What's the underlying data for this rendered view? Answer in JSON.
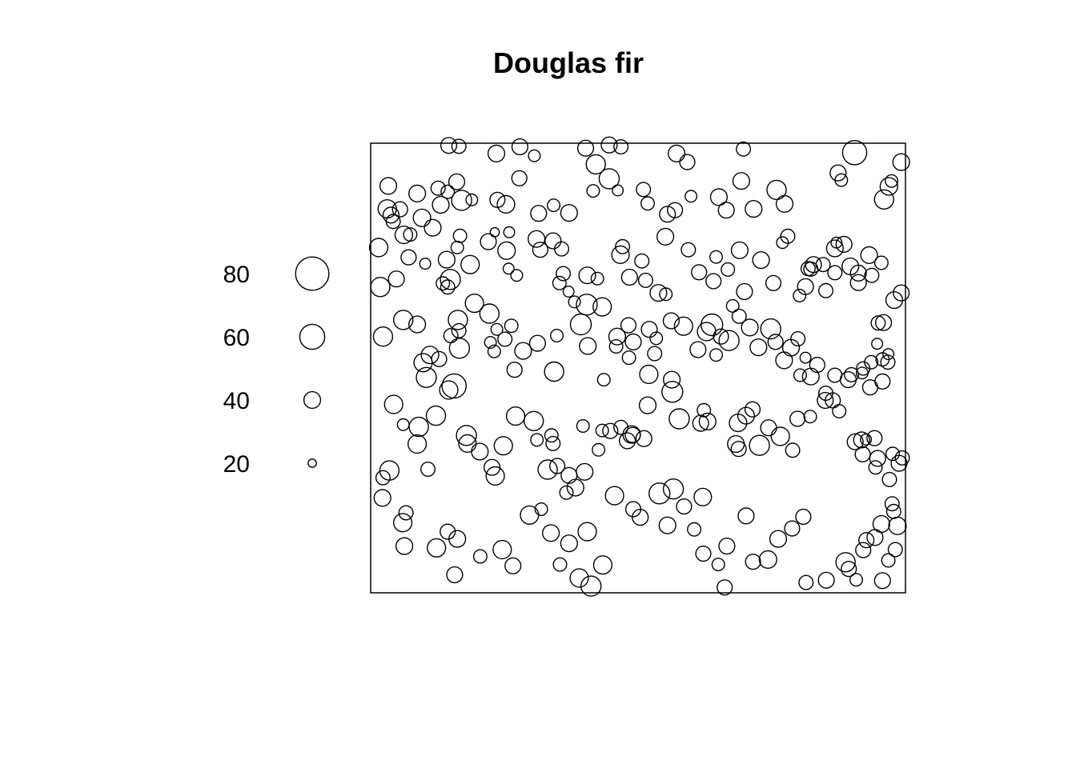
{
  "chart_data": {
    "type": "scatter",
    "title": "Douglas fir",
    "xlabel": "",
    "ylabel": "",
    "xlim": [
      0,
      100
    ],
    "ylim": [
      0,
      100
    ],
    "axes": "none",
    "grid": false,
    "box": true,
    "marker": "open-circle",
    "size_variable": "diameter",
    "legend": {
      "position": "left",
      "entries": [
        {
          "label": "80",
          "value": 80
        },
        {
          "label": "60",
          "value": 60
        },
        {
          "label": "40",
          "value": 40
        },
        {
          "label": "20",
          "value": 20
        }
      ]
    },
    "points": [
      [
        14.6,
        99.5,
        38
      ],
      [
        16.5,
        99.3,
        34
      ],
      [
        23.5,
        97.7,
        40
      ],
      [
        27.9,
        99.2,
        38
      ],
      [
        30.6,
        97.2,
        28
      ],
      [
        40.2,
        98.9,
        38
      ],
      [
        42.1,
        95.3,
        46
      ],
      [
        44.6,
        99.6,
        38
      ],
      [
        46.8,
        99.2,
        34
      ],
      [
        57.2,
        97.7,
        40
      ],
      [
        59.2,
        95.8,
        36
      ],
      [
        69.7,
        98.7,
        34
      ],
      [
        90.5,
        97.9,
        58
      ],
      [
        99.2,
        95.8,
        40
      ],
      [
        3.3,
        90.5,
        40
      ],
      [
        3.1,
        85.4,
        44
      ],
      [
        5.5,
        85.3,
        36
      ],
      [
        8.7,
        88.8,
        40
      ],
      [
        12.6,
        90.0,
        34
      ],
      [
        13.1,
        86.3,
        40
      ],
      [
        16.1,
        91.4,
        38
      ],
      [
        14.4,
        89.2,
        32
      ],
      [
        17.0,
        87.3,
        48
      ],
      [
        18.9,
        87.4,
        28
      ],
      [
        23.7,
        87.4,
        36
      ],
      [
        25.3,
        86.4,
        42
      ],
      [
        27.8,
        92.2,
        36
      ],
      [
        31.4,
        84.4,
        38
      ],
      [
        34.2,
        86.2,
        30
      ],
      [
        37.1,
        84.5,
        40
      ],
      [
        41.6,
        89.4,
        30
      ],
      [
        44.6,
        92.1,
        48
      ],
      [
        46.2,
        89.5,
        26
      ],
      [
        51.0,
        89.7,
        34
      ],
      [
        51.8,
        86.6,
        32
      ],
      [
        55.5,
        84.2,
        38
      ],
      [
        56.9,
        85.1,
        36
      ],
      [
        59.9,
        88.2,
        28
      ],
      [
        65.1,
        88.0,
        40
      ],
      [
        66.5,
        85.1,
        38
      ],
      [
        69.3,
        91.6,
        40
      ],
      [
        71.6,
        85.4,
        40
      ],
      [
        75.9,
        89.6,
        46
      ],
      [
        77.4,
        86.5,
        40
      ],
      [
        87.4,
        93.4,
        38
      ],
      [
        88.0,
        91.8,
        30
      ],
      [
        96.9,
        90.4,
        42
      ],
      [
        96.0,
        87.5,
        46
      ],
      [
        97.4,
        91.6,
        30
      ],
      [
        1.5,
        76.8,
        44
      ],
      [
        3.8,
        84.0,
        38
      ],
      [
        4.2,
        82.6,
        34
      ],
      [
        6.2,
        79.6,
        42
      ],
      [
        7.4,
        79.7,
        32
      ],
      [
        9.6,
        83.4,
        42
      ],
      [
        11.6,
        81.2,
        40
      ],
      [
        7.1,
        74.6,
        36
      ],
      [
        10.2,
        73.2,
        26
      ],
      [
        14.2,
        74.1,
        40
      ],
      [
        14.9,
        69.7,
        48
      ],
      [
        16.2,
        76.8,
        30
      ],
      [
        16.7,
        79.4,
        32
      ],
      [
        18.6,
        73.0,
        44
      ],
      [
        22.0,
        78.1,
        38
      ],
      [
        23.2,
        80.2,
        22
      ],
      [
        25.4,
        76.1,
        42
      ],
      [
        25.9,
        80.2,
        26
      ],
      [
        25.8,
        72.1,
        26
      ],
      [
        27.3,
        70.6,
        28
      ],
      [
        31.0,
        78.7,
        40
      ],
      [
        31.7,
        76.3,
        36
      ],
      [
        34.1,
        78.3,
        38
      ],
      [
        35.7,
        76.5,
        34
      ],
      [
        36.0,
        71.0,
        34
      ],
      [
        35.3,
        68.9,
        32
      ],
      [
        37.0,
        67.0,
        26
      ],
      [
        40.5,
        70.6,
        40
      ],
      [
        42.4,
        69.9,
        30
      ],
      [
        46.7,
        75.2,
        42
      ],
      [
        47.1,
        77.0,
        34
      ],
      [
        48.4,
        70.2,
        38
      ],
      [
        50.7,
        73.8,
        34
      ],
      [
        51.4,
        69.5,
        34
      ],
      [
        53.8,
        66.7,
        40
      ],
      [
        55.2,
        66.4,
        30
      ],
      [
        55.1,
        79.2,
        40
      ],
      [
        59.4,
        76.3,
        34
      ],
      [
        61.4,
        71.3,
        36
      ],
      [
        64.1,
        69.3,
        36
      ],
      [
        64.6,
        74.7,
        30
      ],
      [
        67.7,
        63.8,
        30
      ],
      [
        66.8,
        71.9,
        32
      ],
      [
        69.0,
        76.2,
        40
      ],
      [
        69.9,
        67.0,
        38
      ],
      [
        73.0,
        74.0,
        40
      ],
      [
        75.3,
        68.9,
        36
      ],
      [
        78.0,
        79.3,
        34
      ],
      [
        77.0,
        77.9,
        28
      ],
      [
        81.3,
        68.1,
        38
      ],
      [
        80.2,
        66.1,
        30
      ],
      [
        81.8,
        72.1,
        34
      ],
      [
        82.3,
        72.0,
        34
      ],
      [
        82.8,
        73.0,
        38
      ],
      [
        84.6,
        73.0,
        34
      ],
      [
        85.1,
        67.2,
        34
      ],
      [
        86.8,
        76.6,
        40
      ],
      [
        86.8,
        71.2,
        34
      ],
      [
        87.1,
        77.9,
        26
      ],
      [
        88.5,
        77.5,
        38
      ],
      [
        89.7,
        72.6,
        40
      ],
      [
        91.2,
        71.1,
        38
      ],
      [
        91.2,
        69.0,
        38
      ],
      [
        93.2,
        75.1,
        40
      ],
      [
        93.7,
        70.6,
        34
      ],
      [
        95.5,
        73.4,
        32
      ],
      [
        99.2,
        66.7,
        38
      ],
      [
        97.9,
        65.1,
        40
      ],
      [
        94.9,
        60.0,
        34
      ],
      [
        95.9,
        60.1,
        38
      ],
      [
        1.8,
        68.0,
        46
      ],
      [
        4.8,
        69.8,
        38
      ],
      [
        2.3,
        57.0,
        46
      ],
      [
        6.1,
        60.7,
        46
      ],
      [
        8.7,
        59.7,
        40
      ],
      [
        11.1,
        52.9,
        42
      ],
      [
        9.8,
        51.2,
        44
      ],
      [
        10.4,
        47.9,
        48
      ],
      [
        12.8,
        52.0,
        36
      ],
      [
        13.5,
        68.8,
        32
      ],
      [
        14.4,
        68.0,
        34
      ],
      [
        15.0,
        57.2,
        34
      ],
      [
        16.3,
        60.7,
        46
      ],
      [
        16.5,
        58.3,
        34
      ],
      [
        16.6,
        54.4,
        48
      ],
      [
        15.6,
        46.0,
        58
      ],
      [
        19.4,
        64.4,
        44
      ],
      [
        22.2,
        62.1,
        46
      ],
      [
        23.6,
        58.6,
        28
      ],
      [
        22.4,
        55.7,
        28
      ],
      [
        23.1,
        53.7,
        30
      ],
      [
        25.1,
        56.4,
        34
      ],
      [
        26.3,
        59.4,
        32
      ],
      [
        26.9,
        49.6,
        36
      ],
      [
        28.5,
        53.8,
        40
      ],
      [
        31.2,
        55.5,
        38
      ],
      [
        34.8,
        57.2,
        30
      ],
      [
        38.1,
        64.7,
        28
      ],
      [
        34.3,
        49.2,
        46
      ],
      [
        40.4,
        64.1,
        50
      ],
      [
        39.3,
        59.7,
        50
      ],
      [
        40.6,
        54.9,
        40
      ],
      [
        43.3,
        63.6,
        44
      ],
      [
        46.1,
        57.0,
        40
      ],
      [
        45.9,
        54.8,
        32
      ],
      [
        48.3,
        52.3,
        32
      ],
      [
        48.2,
        59.5,
        36
      ],
      [
        49.1,
        55.8,
        38
      ],
      [
        52.1,
        58.6,
        38
      ],
      [
        53.4,
        56.6,
        30
      ],
      [
        53.1,
        53.2,
        34
      ],
      [
        56.2,
        60.5,
        38
      ],
      [
        58.5,
        59.3,
        44
      ],
      [
        63.8,
        59.6,
        52
      ],
      [
        61.2,
        54.1,
        38
      ],
      [
        62.8,
        58.1,
        44
      ],
      [
        67.0,
        56.1,
        48
      ],
      [
        64.6,
        52.9,
        30
      ],
      [
        65.5,
        57.0,
        36
      ],
      [
        68.9,
        61.5,
        34
      ],
      [
        70.9,
        59.0,
        40
      ],
      [
        72.5,
        54.6,
        40
      ],
      [
        74.8,
        58.7,
        48
      ],
      [
        75.7,
        55.8,
        36
      ],
      [
        79.9,
        56.5,
        34
      ],
      [
        78.6,
        54.5,
        40
      ],
      [
        77.3,
        51.7,
        40
      ],
      [
        81.3,
        52.3,
        26
      ],
      [
        80.3,
        48.4,
        30
      ],
      [
        82.3,
        48.1,
        40
      ],
      [
        83.5,
        50.7,
        36
      ],
      [
        86.8,
        48.4,
        34
      ],
      [
        89.3,
        47.4,
        38
      ],
      [
        89.9,
        48.5,
        34
      ],
      [
        91.9,
        48.9,
        28
      ],
      [
        92.1,
        49.9,
        32
      ],
      [
        93.6,
        51.3,
        32
      ],
      [
        95.7,
        51.9,
        32
      ],
      [
        96.8,
        53.1,
        26
      ],
      [
        95.7,
        47.0,
        36
      ],
      [
        93.4,
        45.7,
        36
      ],
      [
        94.7,
        55.4,
        26
      ],
      [
        96.7,
        51.3,
        34
      ],
      [
        4.3,
        41.9,
        44
      ],
      [
        6.1,
        37.4,
        28
      ],
      [
        3.5,
        27.2,
        46
      ],
      [
        8.7,
        33.1,
        44
      ],
      [
        9.0,
        36.9,
        46
      ],
      [
        12.2,
        39.4,
        46
      ],
      [
        10.7,
        27.5,
        34
      ],
      [
        14.6,
        45.1,
        44
      ],
      [
        17.9,
        35.0,
        48
      ],
      [
        18.1,
        33.2,
        42
      ],
      [
        20.4,
        31.4,
        40
      ],
      [
        22.7,
        27.9,
        38
      ],
      [
        24.8,
        32.7,
        44
      ],
      [
        23.3,
        26.0,
        44
      ],
      [
        27.1,
        39.3,
        44
      ],
      [
        30.5,
        38.2,
        46
      ],
      [
        33.1,
        27.4,
        46
      ],
      [
        34.1,
        33.2,
        34
      ],
      [
        34.9,
        28.2,
        36
      ],
      [
        31.1,
        34.0,
        30
      ],
      [
        33.8,
        35.0,
        32
      ],
      [
        36.6,
        22.3,
        32
      ],
      [
        37.1,
        26.1,
        38
      ],
      [
        38.3,
        23.4,
        40
      ],
      [
        40.0,
        26.9,
        40
      ],
      [
        39.7,
        37.1,
        30
      ],
      [
        42.6,
        31.8,
        30
      ],
      [
        43.3,
        36.1,
        30
      ],
      [
        43.6,
        47.4,
        30
      ],
      [
        44.8,
        36.0,
        36
      ],
      [
        46.8,
        36.8,
        34
      ],
      [
        48.8,
        35.2,
        42
      ],
      [
        49.0,
        35.1,
        36
      ],
      [
        48.0,
        33.8,
        38
      ],
      [
        51.1,
        34.3,
        38
      ],
      [
        51.8,
        41.7,
        40
      ],
      [
        52.0,
        48.6,
        44
      ],
      [
        56.3,
        47.4,
        40
      ],
      [
        56.4,
        44.7,
        50
      ],
      [
        57.7,
        38.7,
        48
      ],
      [
        61.7,
        37.7,
        38
      ],
      [
        62.3,
        40.6,
        32
      ],
      [
        63.0,
        38.1,
        40
      ],
      [
        68.7,
        37.8,
        42
      ],
      [
        68.3,
        33.1,
        40
      ],
      [
        68.8,
        32.0,
        36
      ],
      [
        70.2,
        39.4,
        40
      ],
      [
        71.4,
        40.8,
        36
      ],
      [
        72.7,
        32.8,
        48
      ],
      [
        74.4,
        36.7,
        38
      ],
      [
        76.6,
        34.8,
        44
      ],
      [
        78.9,
        31.7,
        34
      ],
      [
        79.8,
        38.7,
        36
      ],
      [
        82.2,
        39.2,
        30
      ],
      [
        85.1,
        44.4,
        34
      ],
      [
        85.0,
        42.8,
        38
      ],
      [
        86.4,
        42.8,
        36
      ],
      [
        87.6,
        40.4,
        32
      ],
      [
        90.6,
        33.6,
        38
      ],
      [
        91.8,
        34.0,
        38
      ],
      [
        92.0,
        30.8,
        36
      ],
      [
        92.6,
        34.1,
        26
      ],
      [
        94.2,
        34.4,
        36
      ],
      [
        94.8,
        29.9,
        38
      ],
      [
        97.6,
        30.9,
        32
      ],
      [
        98.8,
        28.8,
        38
      ],
      [
        99.4,
        30.0,
        34
      ],
      [
        97.0,
        25.2,
        34
      ],
      [
        97.5,
        19.8,
        34
      ],
      [
        94.4,
        27.9,
        32
      ],
      [
        2.3,
        25.6,
        34
      ],
      [
        2.2,
        21.1,
        40
      ],
      [
        6.6,
        17.8,
        34
      ],
      [
        6.0,
        15.6,
        44
      ],
      [
        6.3,
        10.4,
        40
      ],
      [
        12.3,
        10.0,
        44
      ],
      [
        14.4,
        13.6,
        36
      ],
      [
        15.7,
        4.0,
        38
      ],
      [
        16.2,
        12.0,
        40
      ],
      [
        20.5,
        8.1,
        32
      ],
      [
        24.6,
        9.6,
        44
      ],
      [
        26.6,
        6.0,
        38
      ],
      [
        29.7,
        17.3,
        44
      ],
      [
        31.9,
        18.6,
        30
      ],
      [
        33.7,
        13.3,
        40
      ],
      [
        35.4,
        6.3,
        32
      ],
      [
        37.1,
        11.0,
        40
      ],
      [
        39.0,
        3.3,
        44
      ],
      [
        40.5,
        13.6,
        44
      ],
      [
        41.2,
        1.5,
        48
      ],
      [
        43.4,
        6.2,
        44
      ],
      [
        45.6,
        21.6,
        44
      ],
      [
        49.1,
        18.6,
        36
      ],
      [
        50.4,
        16.8,
        38
      ],
      [
        54.0,
        22.1,
        50
      ],
      [
        55.5,
        15.0,
        40
      ],
      [
        56.6,
        23.1,
        48
      ],
      [
        58.6,
        19.2,
        36
      ],
      [
        62.1,
        21.3,
        42
      ],
      [
        60.5,
        14.1,
        32
      ],
      [
        62.2,
        8.7,
        36
      ],
      [
        65.0,
        6.3,
        30
      ],
      [
        66.6,
        10.4,
        38
      ],
      [
        66.2,
        1.2,
        36
      ],
      [
        70.2,
        17.1,
        38
      ],
      [
        71.5,
        6.9,
        36
      ],
      [
        74.3,
        7.4,
        42
      ],
      [
        76.2,
        12.0,
        40
      ],
      [
        78.8,
        14.3,
        36
      ],
      [
        80.9,
        16.9,
        36
      ],
      [
        81.4,
        2.3,
        34
      ],
      [
        85.2,
        2.8,
        38
      ],
      [
        88.8,
        6.8,
        46
      ],
      [
        89.4,
        5.3,
        36
      ],
      [
        90.8,
        2.9,
        30
      ],
      [
        92.1,
        9.5,
        36
      ],
      [
        92.7,
        11.7,
        36
      ],
      [
        94.3,
        12.3,
        38
      ],
      [
        95.5,
        15.3,
        40
      ],
      [
        97.8,
        18.1,
        34
      ],
      [
        98.5,
        14.9,
        42
      ],
      [
        96.8,
        7.2,
        32
      ],
      [
        95.7,
        2.7,
        38
      ],
      [
        98.1,
        9.6,
        34
      ]
    ]
  }
}
